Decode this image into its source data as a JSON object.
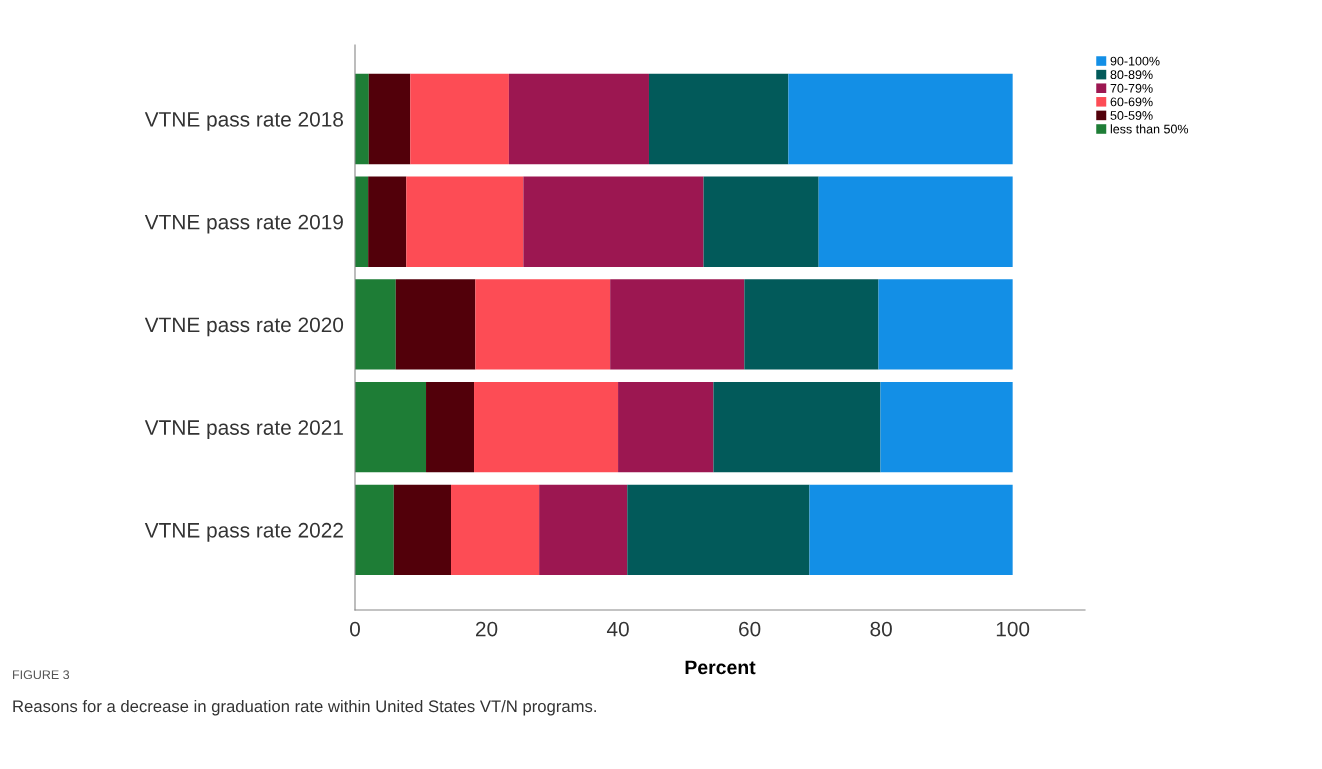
{
  "chart_data": {
    "type": "bar",
    "orientation": "horizontal",
    "stacked": true,
    "xlabel": "Percent",
    "categories": [
      "VTNE pass rate 2018",
      "VTNE pass rate 2019",
      "VTNE pass rate 2020",
      "VTNE pass rate 2021",
      "VTNE pass rate 2022"
    ],
    "series": [
      {
        "name": "less than 50%",
        "color": "#1e7d36",
        "values": [
          2.1,
          2.0,
          6.2,
          10.8,
          5.9
        ]
      },
      {
        "name": "50-59%",
        "color": "#52000a",
        "values": [
          6.3,
          5.8,
          12.1,
          7.3,
          8.7
        ]
      },
      {
        "name": "60-69%",
        "color": "#fd4c55",
        "values": [
          15.0,
          17.8,
          20.5,
          21.9,
          13.4
        ]
      },
      {
        "name": "70-79%",
        "color": "#9c1751",
        "values": [
          21.3,
          27.4,
          20.4,
          14.5,
          13.4
        ]
      },
      {
        "name": "80-89%",
        "color": "#025a5a",
        "values": [
          21.2,
          17.5,
          20.4,
          25.4,
          27.7
        ]
      },
      {
        "name": "90-100%",
        "color": "#138fe6",
        "values": [
          34.1,
          29.5,
          20.4,
          20.1,
          30.9
        ]
      }
    ],
    "xlim": [
      0,
      111
    ],
    "xticks": [
      0,
      20,
      40,
      60,
      80,
      100
    ],
    "grid": false,
    "legend": "top right",
    "annotations": [
      "FIGURE 3",
      "Reasons for a decrease in graduation rate within United States VT/N programs."
    ]
  }
}
